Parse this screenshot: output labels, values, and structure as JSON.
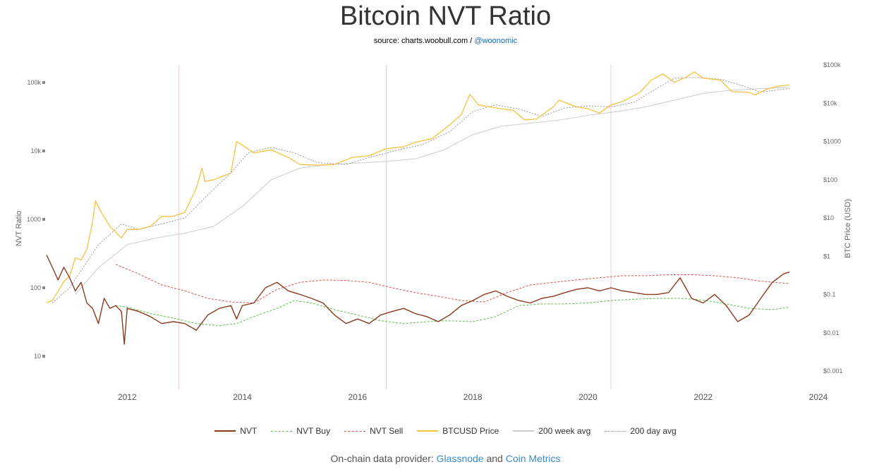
{
  "title": "Bitcoin NVT Ratio",
  "subtitle": {
    "prefix": "source: charts.woobull.com / ",
    "handle": "@woonomic"
  },
  "footer": {
    "prefix": "On-chain data provider: ",
    "provider1": "Glassnode",
    "and": " and ",
    "provider2": "Coin Metrics"
  },
  "colors": {
    "nvt": "#8b3a1e",
    "nvt_buy": "#5cbf4a",
    "nvt_sell": "#d9534f",
    "price": "#f5c242",
    "week200": "#cccccc",
    "day200": "#999999",
    "vline": "#f2c6d0"
  },
  "chart_data": {
    "type": "line",
    "title": "Bitcoin NVT Ratio",
    "y_left": {
      "label": "NVT Ratio",
      "scale": "log",
      "range": [
        5,
        200000
      ],
      "ticks": [
        10,
        100,
        1000,
        10000,
        100000
      ],
      "tick_labels": [
        "10",
        "100",
        "1000",
        "10k",
        "100k"
      ]
    },
    "y_right": {
      "label": "BTC Price (USD)",
      "scale": "log",
      "range": [
        0.0005,
        100000
      ],
      "ticks": [
        0.001,
        0.01,
        0.1,
        1,
        10,
        100,
        1000,
        10000,
        100000
      ],
      "tick_labels": [
        "$0.001",
        "$0.01",
        "$0.1",
        "$1",
        "$10",
        "$100",
        "$1000",
        "$10k",
        "$100k"
      ]
    },
    "x_axis": {
      "range": [
        2010.6,
        2024.0
      ],
      "ticks": [
        2012,
        2014,
        2016,
        2018,
        2020,
        2022,
        2024
      ],
      "tick_labels": [
        "2012",
        "2014",
        "2016",
        "2018",
        "2020",
        "2022",
        "2024"
      ]
    },
    "halvings": [
      2012.9,
      2016.5,
      2020.4
    ],
    "grid": false,
    "legend_position": "bottom",
    "series": [
      {
        "name": "NVT",
        "axis": "left",
        "points": [
          [
            2010.6,
            300
          ],
          [
            2010.7,
            200
          ],
          [
            2010.8,
            130
          ],
          [
            2010.9,
            200
          ],
          [
            2011.0,
            140
          ],
          [
            2011.1,
            90
          ],
          [
            2011.2,
            120
          ],
          [
            2011.3,
            60
          ],
          [
            2011.4,
            50
          ],
          [
            2011.5,
            30
          ],
          [
            2011.6,
            70
          ],
          [
            2011.7,
            50
          ],
          [
            2011.8,
            55
          ],
          [
            2011.9,
            45
          ],
          [
            2011.95,
            15
          ],
          [
            2012.0,
            50
          ],
          [
            2012.2,
            45
          ],
          [
            2012.4,
            38
          ],
          [
            2012.6,
            30
          ],
          [
            2012.8,
            32
          ],
          [
            2013.0,
            30
          ],
          [
            2013.2,
            24
          ],
          [
            2013.4,
            40
          ],
          [
            2013.6,
            50
          ],
          [
            2013.8,
            55
          ],
          [
            2013.9,
            35
          ],
          [
            2014.0,
            55
          ],
          [
            2014.2,
            60
          ],
          [
            2014.4,
            100
          ],
          [
            2014.6,
            120
          ],
          [
            2014.8,
            90
          ],
          [
            2015.0,
            80
          ],
          [
            2015.2,
            70
          ],
          [
            2015.4,
            60
          ],
          [
            2015.6,
            40
          ],
          [
            2015.8,
            30
          ],
          [
            2016.0,
            35
          ],
          [
            2016.2,
            30
          ],
          [
            2016.4,
            40
          ],
          [
            2016.6,
            45
          ],
          [
            2016.8,
            50
          ],
          [
            2017.0,
            42
          ],
          [
            2017.2,
            38
          ],
          [
            2017.4,
            32
          ],
          [
            2017.6,
            40
          ],
          [
            2017.8,
            55
          ],
          [
            2018.0,
            65
          ],
          [
            2018.2,
            80
          ],
          [
            2018.4,
            90
          ],
          [
            2018.6,
            75
          ],
          [
            2018.8,
            65
          ],
          [
            2019.0,
            60
          ],
          [
            2019.2,
            70
          ],
          [
            2019.4,
            75
          ],
          [
            2019.6,
            85
          ],
          [
            2019.8,
            95
          ],
          [
            2020.0,
            100
          ],
          [
            2020.2,
            90
          ],
          [
            2020.4,
            100
          ],
          [
            2020.6,
            90
          ],
          [
            2020.8,
            85
          ],
          [
            2021.0,
            80
          ],
          [
            2021.2,
            80
          ],
          [
            2021.4,
            85
          ],
          [
            2021.6,
            140
          ],
          [
            2021.8,
            70
          ],
          [
            2022.0,
            60
          ],
          [
            2022.2,
            80
          ],
          [
            2022.4,
            55
          ],
          [
            2022.6,
            32
          ],
          [
            2022.8,
            40
          ],
          [
            2023.0,
            70
          ],
          [
            2023.2,
            120
          ],
          [
            2023.4,
            160
          ],
          [
            2023.5,
            170
          ]
        ]
      },
      {
        "name": "NVT Buy",
        "axis": "left",
        "points": [
          [
            2011.8,
            55
          ],
          [
            2012.0,
            52
          ],
          [
            2012.4,
            42
          ],
          [
            2012.8,
            36
          ],
          [
            2013.2,
            30
          ],
          [
            2013.6,
            28
          ],
          [
            2013.9,
            30
          ],
          [
            2014.2,
            38
          ],
          [
            2014.6,
            50
          ],
          [
            2014.9,
            65
          ],
          [
            2015.2,
            60
          ],
          [
            2015.6,
            48
          ],
          [
            2016.0,
            40
          ],
          [
            2016.4,
            33
          ],
          [
            2016.8,
            30
          ],
          [
            2017.2,
            32
          ],
          [
            2017.6,
            33
          ],
          [
            2018.0,
            32
          ],
          [
            2018.4,
            38
          ],
          [
            2018.8,
            55
          ],
          [
            2019.2,
            58
          ],
          [
            2019.6,
            58
          ],
          [
            2020.0,
            60
          ],
          [
            2020.4,
            65
          ],
          [
            2020.8,
            68
          ],
          [
            2021.2,
            70
          ],
          [
            2021.6,
            70
          ],
          [
            2022.0,
            66
          ],
          [
            2022.4,
            58
          ],
          [
            2022.8,
            50
          ],
          [
            2023.2,
            48
          ],
          [
            2023.5,
            52
          ]
        ]
      },
      {
        "name": "NVT Sell",
        "axis": "left",
        "points": [
          [
            2011.8,
            220
          ],
          [
            2012.2,
            160
          ],
          [
            2012.6,
            110
          ],
          [
            2013.0,
            90
          ],
          [
            2013.4,
            70
          ],
          [
            2013.8,
            62
          ],
          [
            2014.2,
            60
          ],
          [
            2014.6,
            95
          ],
          [
            2015.0,
            120
          ],
          [
            2015.4,
            130
          ],
          [
            2015.8,
            128
          ],
          [
            2016.2,
            120
          ],
          [
            2016.6,
            100
          ],
          [
            2017.0,
            85
          ],
          [
            2017.4,
            75
          ],
          [
            2017.8,
            65
          ],
          [
            2018.2,
            62
          ],
          [
            2018.6,
            85
          ],
          [
            2019.0,
            110
          ],
          [
            2019.4,
            120
          ],
          [
            2019.8,
            130
          ],
          [
            2020.2,
            140
          ],
          [
            2020.6,
            150
          ],
          [
            2021.0,
            150
          ],
          [
            2021.4,
            155
          ],
          [
            2021.8,
            155
          ],
          [
            2022.2,
            150
          ],
          [
            2022.6,
            140
          ],
          [
            2023.0,
            125
          ],
          [
            2023.5,
            115
          ]
        ]
      },
      {
        "name": "BTCUSD Price",
        "axis": "right",
        "points": [
          [
            2010.6,
            0.06
          ],
          [
            2010.7,
            0.07
          ],
          [
            2010.8,
            0.12
          ],
          [
            2010.9,
            0.22
          ],
          [
            2011.0,
            0.3
          ],
          [
            2011.1,
            0.9
          ],
          [
            2011.2,
            0.8
          ],
          [
            2011.3,
            1.5
          ],
          [
            2011.4,
            8
          ],
          [
            2011.45,
            28
          ],
          [
            2011.55,
            14
          ],
          [
            2011.7,
            6
          ],
          [
            2011.9,
            3
          ],
          [
            2012.0,
            5
          ],
          [
            2012.2,
            5
          ],
          [
            2012.4,
            6
          ],
          [
            2012.6,
            11
          ],
          [
            2012.8,
            11
          ],
          [
            2013.0,
            14
          ],
          [
            2013.2,
            60
          ],
          [
            2013.3,
            200
          ],
          [
            2013.35,
            90
          ],
          [
            2013.5,
            100
          ],
          [
            2013.8,
            150
          ],
          [
            2013.9,
            1000
          ],
          [
            2014.0,
            800
          ],
          [
            2014.2,
            500
          ],
          [
            2014.5,
            600
          ],
          [
            2014.8,
            380
          ],
          [
            2015.0,
            250
          ],
          [
            2015.3,
            240
          ],
          [
            2015.6,
            250
          ],
          [
            2015.9,
            380
          ],
          [
            2016.2,
            420
          ],
          [
            2016.5,
            650
          ],
          [
            2016.8,
            720
          ],
          [
            2017.0,
            950
          ],
          [
            2017.3,
            1200
          ],
          [
            2017.6,
            2700
          ],
          [
            2017.8,
            5000
          ],
          [
            2017.95,
            17000
          ],
          [
            2018.1,
            9000
          ],
          [
            2018.4,
            7500
          ],
          [
            2018.7,
            6500
          ],
          [
            2018.9,
            3700
          ],
          [
            2019.1,
            3800
          ],
          [
            2019.4,
            8000
          ],
          [
            2019.5,
            12000
          ],
          [
            2019.8,
            8000
          ],
          [
            2020.0,
            7200
          ],
          [
            2020.2,
            5500
          ],
          [
            2020.4,
            9000
          ],
          [
            2020.6,
            11000
          ],
          [
            2020.9,
            19000
          ],
          [
            2021.1,
            40000
          ],
          [
            2021.3,
            58000
          ],
          [
            2021.5,
            35000
          ],
          [
            2021.7,
            48000
          ],
          [
            2021.85,
            65000
          ],
          [
            2022.0,
            45000
          ],
          [
            2022.3,
            40000
          ],
          [
            2022.5,
            20000
          ],
          [
            2022.8,
            19000
          ],
          [
            2022.9,
            16500
          ],
          [
            2023.1,
            23000
          ],
          [
            2023.3,
            28000
          ],
          [
            2023.5,
            30000
          ]
        ]
      },
      {
        "name": "200 week avg",
        "axis": "right",
        "points": [
          [
            2011.1,
            0.1
          ],
          [
            2011.5,
            0.5
          ],
          [
            2012.0,
            2
          ],
          [
            2012.5,
            3
          ],
          [
            2013.0,
            4
          ],
          [
            2013.5,
            6
          ],
          [
            2014.0,
            20
          ],
          [
            2014.5,
            100
          ],
          [
            2015.0,
            200
          ],
          [
            2015.5,
            250
          ],
          [
            2016.0,
            270
          ],
          [
            2016.5,
            300
          ],
          [
            2017.0,
            350
          ],
          [
            2017.5,
            600
          ],
          [
            2018.0,
            1500
          ],
          [
            2018.5,
            2500
          ],
          [
            2019.0,
            3000
          ],
          [
            2019.5,
            3600
          ],
          [
            2020.0,
            4800
          ],
          [
            2020.5,
            6000
          ],
          [
            2021.0,
            8000
          ],
          [
            2021.5,
            12000
          ],
          [
            2022.0,
            18000
          ],
          [
            2022.5,
            22000
          ],
          [
            2023.0,
            24000
          ],
          [
            2023.5,
            26000
          ]
        ]
      },
      {
        "name": "200 day avg",
        "axis": "right",
        "points": [
          [
            2010.7,
            0.06
          ],
          [
            2011.0,
            0.15
          ],
          [
            2011.5,
            2
          ],
          [
            2011.9,
            7
          ],
          [
            2012.2,
            5
          ],
          [
            2012.6,
            7
          ],
          [
            2013.0,
            10
          ],
          [
            2013.4,
            40
          ],
          [
            2013.8,
            150
          ],
          [
            2014.1,
            500
          ],
          [
            2014.5,
            700
          ],
          [
            2014.9,
            500
          ],
          [
            2015.3,
            280
          ],
          [
            2015.8,
            250
          ],
          [
            2016.2,
            380
          ],
          [
            2016.7,
            600
          ],
          [
            2017.1,
            800
          ],
          [
            2017.6,
            1800
          ],
          [
            2018.0,
            6000
          ],
          [
            2018.4,
            9000
          ],
          [
            2018.8,
            7000
          ],
          [
            2019.2,
            4500
          ],
          [
            2019.6,
            7500
          ],
          [
            2020.0,
            8500
          ],
          [
            2020.4,
            8000
          ],
          [
            2020.8,
            10500
          ],
          [
            2021.1,
            20000
          ],
          [
            2021.5,
            45000
          ],
          [
            2021.9,
            47000
          ],
          [
            2022.3,
            42000
          ],
          [
            2022.7,
            28000
          ],
          [
            2023.0,
            19500
          ],
          [
            2023.5,
            24000
          ]
        ]
      }
    ]
  },
  "legend": {
    "items": [
      {
        "label": "NVT",
        "style": "solid",
        "color": "#8b3a1e"
      },
      {
        "label": "NVT Buy",
        "style": "dashed",
        "color": "#5cbf4a"
      },
      {
        "label": "NVT Sell",
        "style": "dashed",
        "color": "#d9534f"
      },
      {
        "label": "BTCUSD Price",
        "style": "solid",
        "color": "#f5c242"
      },
      {
        "label": "200 week avg",
        "style": "solid",
        "color": "#cccccc"
      },
      {
        "label": "200 day avg",
        "style": "dotted",
        "color": "#999999"
      }
    ]
  }
}
